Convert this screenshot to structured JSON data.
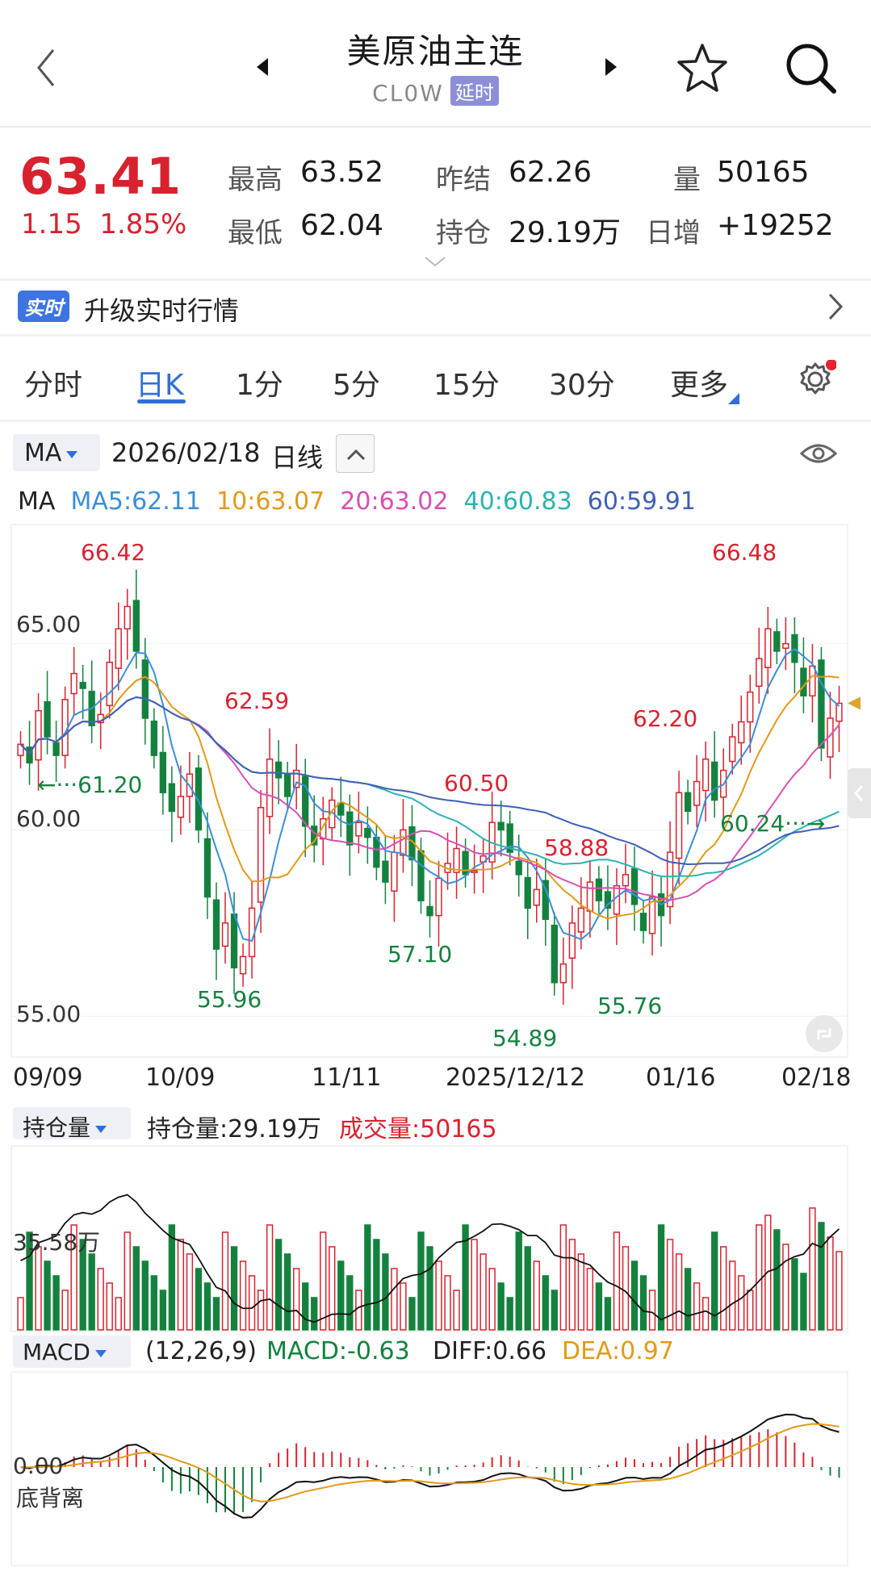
{
  "header": {
    "title": "美原油主连",
    "code": "CL0W",
    "delay_badge": "延时"
  },
  "quote": {
    "price": "63.41",
    "change": "1.15",
    "change_pct": "1.85%",
    "high_label": "最高",
    "high": "63.52",
    "low_label": "最低",
    "low": "62.04",
    "prev_close_label": "昨结",
    "prev_close": "62.26",
    "oi_label": "持仓",
    "oi": "29.19万",
    "vol_label": "量",
    "vol": "50165",
    "daily_inc_label": "日增",
    "daily_inc": "+19252"
  },
  "notice": {
    "badge": "实时",
    "text": "升级实时行情"
  },
  "tabs": [
    "分时",
    "日K",
    "1分",
    "5分",
    "15分",
    "30分",
    "更多"
  ],
  "active_tab": "日K",
  "chart_header": {
    "indicator": "MA",
    "date": "2026/02/18",
    "period": "日线"
  },
  "ma_line": {
    "label": "MA",
    "ma5": "MA5:62.11",
    "ma10": "10:63.07",
    "ma20": "20:63.02",
    "ma40": "40:60.83",
    "ma60": "60:59.91"
  },
  "colors": {
    "up": "#d8222f",
    "down": "#14823e",
    "ma5": "#3a8fd8",
    "ma10": "#e19a1a",
    "ma20": "#d94fb3",
    "ma40": "#2bb3b0",
    "ma60": "#3f5fb8",
    "accent": "#2f6fd8"
  },
  "chart_data": {
    "type": "candlestick",
    "y_ticks": [
      "65.00",
      "60.00",
      "55.00"
    ],
    "ylim": [
      53.9,
      68.2
    ],
    "x_labels": [
      "09/09",
      "10/09",
      "11/11",
      "2025/12/12",
      "01/16",
      "02/18"
    ],
    "annotations": [
      "66.42",
      "62.59",
      "61.20",
      "55.96",
      "57.10",
      "60.50",
      "58.88",
      "54.89",
      "55.76",
      "62.20",
      "66.48",
      "60.24"
    ],
    "close": [
      62.3,
      61.8,
      63.2,
      62.5,
      62.0,
      63.5,
      64.2,
      63.8,
      62.8,
      63.1,
      64.5,
      65.4,
      66.0,
      64.8,
      63.0,
      62.0,
      61.0,
      60.5,
      60.9,
      61.5,
      60.0,
      58.2,
      56.8,
      57.5,
      56.3,
      56.6,
      57.9,
      60.6,
      61.9,
      61.4,
      60.9,
      61.6,
      60.1,
      59.6,
      60.3,
      60.8,
      60.4,
      59.6,
      60.2,
      59.8,
      59.0,
      58.6,
      59.4,
      60.0,
      59.2,
      58.1,
      57.7,
      58.7,
      59.1,
      59.5,
      58.8,
      58.9,
      59.3,
      60.2,
      60.0,
      59.4,
      58.8,
      57.9,
      58.4,
      57.6,
      55.9,
      56.4,
      57.5,
      57.9,
      58.6,
      58.1,
      57.9,
      58.5,
      58.8,
      58.0,
      57.3,
      58.2,
      57.7,
      59.4,
      61.0,
      60.5,
      61.3,
      61.9,
      60.8,
      61.6,
      62.5,
      62.9,
      63.7,
      64.6,
      65.4,
      64.8,
      65.0,
      64.5,
      63.6,
      64.4,
      62.2,
      63.0,
      63.4
    ],
    "volume_label": "持仓量",
    "oi_value": "持仓量:29.19万",
    "trade_volume": "成交量:50165",
    "vol_tick": "35.58万",
    "macd_label": "MACD",
    "macd_params": "(12,26,9)",
    "macd": "MACD:-0.63",
    "diff": "DIFF:0.66",
    "dea": "DEA:0.97",
    "macd_zero": "0.00",
    "divergence": "底背离"
  }
}
